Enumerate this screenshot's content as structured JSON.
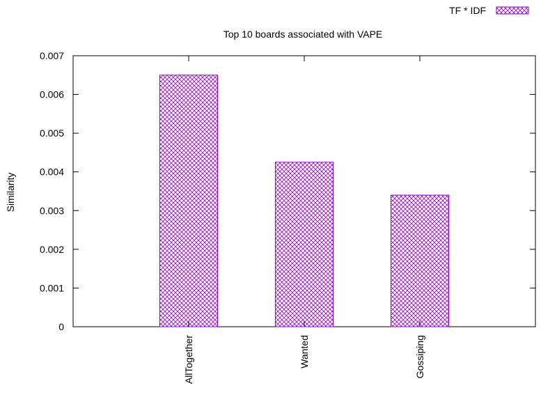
{
  "chart_data": {
    "type": "bar",
    "title": "Top 10 boards associated with VAPE",
    "xlabel": "",
    "ylabel": "Similarity",
    "categories": [
      "AllTogether",
      "Wanted",
      "Gossiping"
    ],
    "series": [
      {
        "name": "TF * IDF",
        "values": [
          0.0065,
          0.00425,
          0.0034
        ]
      }
    ],
    "ylim": [
      0,
      0.007
    ],
    "yticks": [
      "0",
      "0.001",
      "0.002",
      "0.003",
      "0.004",
      "0.005",
      "0.006",
      "0.007"
    ],
    "ytick_values": [
      0,
      0.001,
      0.002,
      0.003,
      0.004,
      0.005,
      0.006,
      0.007
    ],
    "grid": false,
    "legend_position": "top-right",
    "colors": {
      "bar_pattern": "#9400d3",
      "axis": "#000000"
    }
  }
}
